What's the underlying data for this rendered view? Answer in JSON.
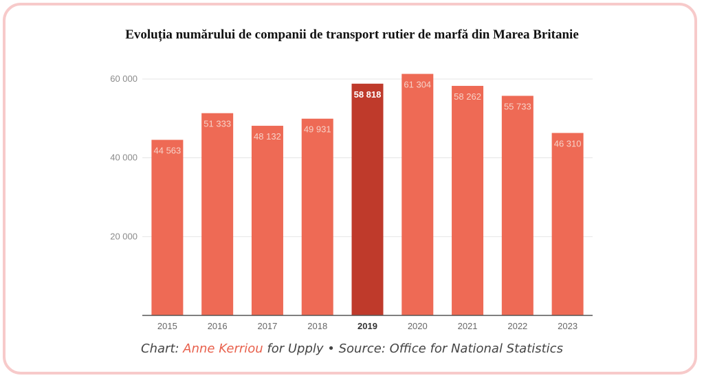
{
  "chart_data": {
    "type": "bar",
    "title": "Evoluția numărului de companii de transport rutier de marfă din Marea Britanie",
    "categories": [
      "2015",
      "2016",
      "2017",
      "2018",
      "2019",
      "2020",
      "2021",
      "2022",
      "2023"
    ],
    "values": [
      44563,
      51333,
      48132,
      49931,
      58818,
      61304,
      58262,
      55733,
      46310
    ],
    "value_labels": [
      "44 563",
      "51 333",
      "48 132",
      "49 931",
      "58 818",
      "61 304",
      "58 262",
      "55 733",
      "46 310"
    ],
    "highlight_category": "2019",
    "ylim": [
      0,
      60000
    ],
    "yticks": [
      20000,
      40000,
      60000
    ],
    "ytick_labels": [
      "20 000",
      "40 000",
      "60 000"
    ],
    "xlabel": "",
    "ylabel": "",
    "grid": true,
    "colors": {
      "bar": "#ee6a55",
      "highlight": "#bf3a2b"
    }
  },
  "footer": {
    "prefix": "Chart: ",
    "author": "Anne Kerriou",
    "middle": " for Upply  •  Source: Office for National Statistics"
  }
}
